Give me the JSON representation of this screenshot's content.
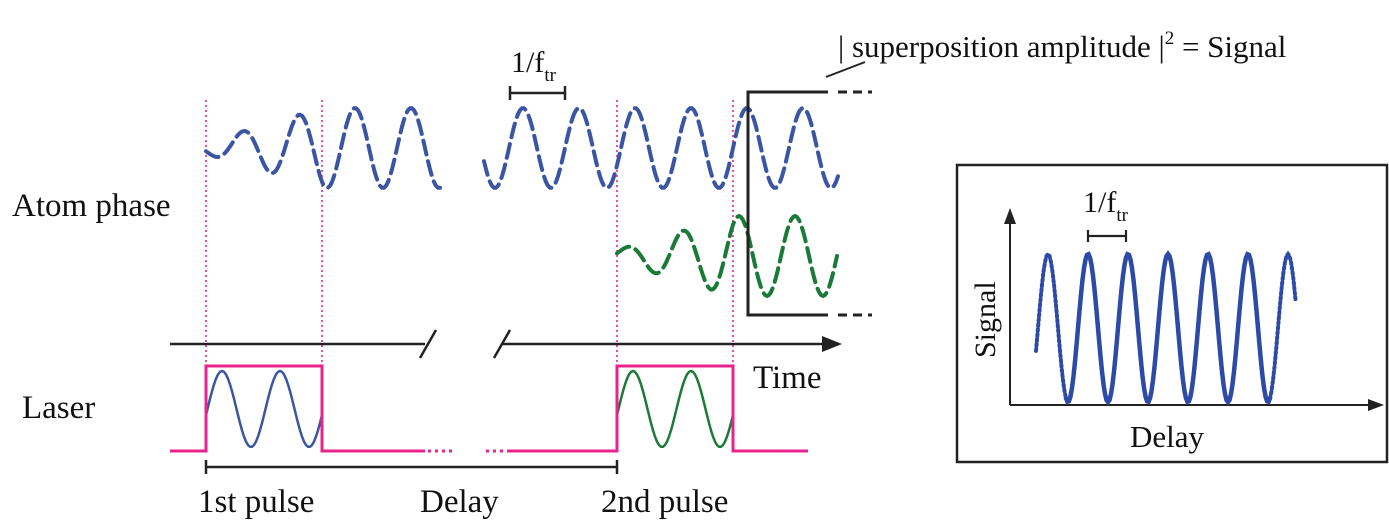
{
  "labels": {
    "atom_phase": "Atom phase",
    "laser": "Laser",
    "time": "Time",
    "first_pulse": "1st pulse",
    "delay": "Delay",
    "second_pulse": "2nd pulse",
    "period_main": "1/f",
    "period_main_sub": "tr",
    "signal_eq_pre": "| superposition amplitude |",
    "signal_eq_sup": "2",
    "signal_eq_post": " = Signal"
  },
  "inset": {
    "ylabel": "Signal",
    "xlabel": "Delay",
    "period": "1/f",
    "period_sub": "tr"
  },
  "colors": {
    "atom_wave_1": "#3a55a4",
    "atom_wave_2": "#1b7a37",
    "laser_envelope": "#e8238c",
    "marker_lines": "#e8238c",
    "axis": "#222222",
    "inset_signal": "#2c4aa6"
  }
}
